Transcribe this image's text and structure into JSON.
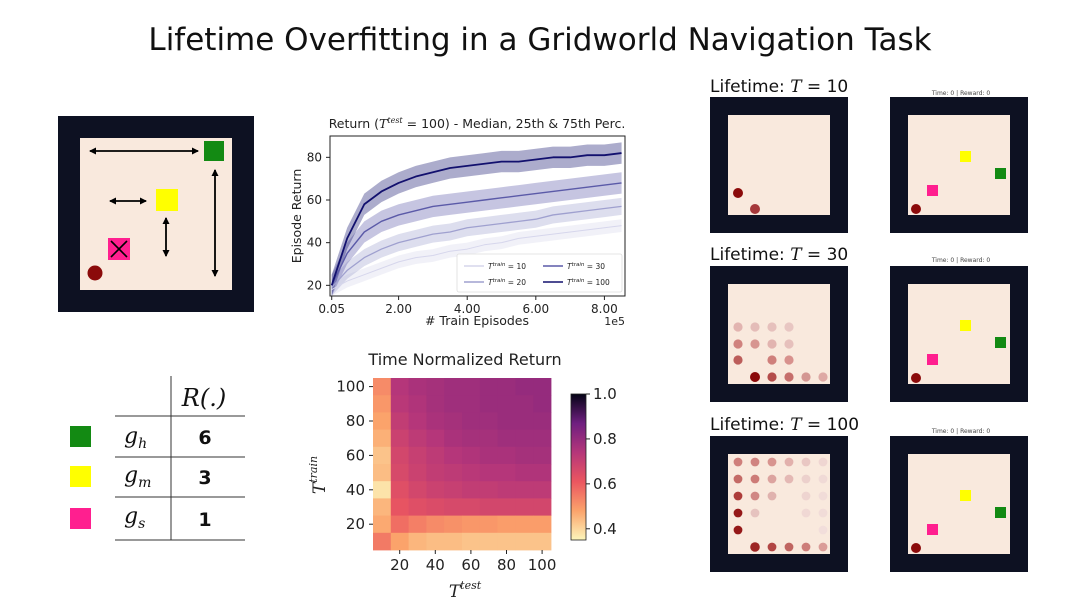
{
  "title": "Lifetime Overfitting in a Gridworld Navigation Task",
  "colors": {
    "background": "#ffffff",
    "frame": "#0d1122",
    "floor": "#f9e9dd",
    "goal_high": "#138a13",
    "goal_medium": "#ffff00",
    "goal_small": "#ff1f8f",
    "agent": "#8b0a0a"
  },
  "reward_table": {
    "header": "R(.)",
    "rows": [
      {
        "goal": "g_h",
        "symbol": "g",
        "subscript": "h",
        "reward": "6",
        "color_key": "goal_high"
      },
      {
        "goal": "g_m",
        "symbol": "g",
        "subscript": "m",
        "reward": "3",
        "color_key": "goal_medium"
      },
      {
        "goal": "g_s",
        "symbol": "g",
        "subscript": "s",
        "reward": "1",
        "color_key": "goal_small"
      }
    ]
  },
  "lifetime_panels": [
    {
      "label_prefix": "Lifetime: ",
      "label_var": "T",
      "label_suffix": " = 10",
      "mini_caption": "Time: 0 | Reward: 0"
    },
    {
      "label_prefix": "Lifetime: ",
      "label_var": "T",
      "label_suffix": " = 30",
      "mini_caption": "Time: 0 | Reward: 0"
    },
    {
      "label_prefix": "Lifetime: ",
      "label_var": "T",
      "label_suffix": " = 100",
      "mini_caption": "Time: 0 | Reward: 0"
    }
  ],
  "chart_data": [
    {
      "type": "line",
      "title": "Return (T^test = 100) - Median, 25th & 75th Perc.",
      "title_parts": {
        "prefix": "Return (",
        "var": "T",
        "sup": "test",
        "suffix": " = 100) - Median, 25th & 75th Perc."
      },
      "xlabel": "# Train Episodes",
      "x_offset_label": "1e5",
      "ylabel": "Episode Return",
      "xlim": [
        0,
        8.6
      ],
      "ylim": [
        15,
        90
      ],
      "xticks": [
        0.05,
        2.0,
        4.0,
        6.0,
        8.0
      ],
      "xtick_labels": [
        "0.05",
        "2.00",
        "4.00",
        "6.00",
        "8.00"
      ],
      "yticks": [
        20,
        40,
        60,
        80
      ],
      "grid": false,
      "legend_placement": "bottom-right",
      "series": [
        {
          "name": "T^train = 10",
          "legend_sup": "train",
          "legend_val": " = 10",
          "color": "#d6d6ec",
          "x": [
            0.05,
            0.5,
            1.0,
            1.5,
            2.0,
            2.5,
            3.0,
            3.5,
            4.0,
            4.5,
            5.0,
            5.5,
            6.0,
            6.5,
            7.0,
            7.5,
            8.0,
            8.5
          ],
          "y": [
            18,
            22,
            25,
            28,
            31,
            33,
            34,
            36,
            37,
            39,
            40,
            42,
            43,
            44,
            45,
            46,
            47,
            48
          ]
        },
        {
          "name": "T^train = 20",
          "legend_sup": "train",
          "legend_val": " = 20",
          "color": "#9fa0cf",
          "x": [
            0.05,
            0.5,
            1.0,
            1.5,
            2.0,
            2.5,
            3.0,
            3.5,
            4.0,
            4.5,
            5.0,
            5.5,
            6.0,
            6.5,
            7.0,
            7.5,
            8.0,
            8.5
          ],
          "y": [
            19,
            27,
            33,
            37,
            40,
            42,
            44,
            45,
            47,
            48,
            49,
            50,
            51,
            53,
            54,
            55,
            56,
            57
          ]
        },
        {
          "name": "T^train = 30",
          "legend_sup": "train",
          "legend_val": " = 30",
          "color": "#5b5aa8",
          "x": [
            0.05,
            0.5,
            1.0,
            1.5,
            2.0,
            2.5,
            3.0,
            3.5,
            4.0,
            4.5,
            5.0,
            5.5,
            6.0,
            6.5,
            7.0,
            7.5,
            8.0,
            8.5
          ],
          "y": [
            20,
            35,
            45,
            50,
            53,
            55,
            57,
            58,
            59,
            60,
            61,
            62,
            63,
            64,
            65,
            66,
            67,
            68
          ]
        },
        {
          "name": "T^train = 100",
          "legend_sup": "train",
          "legend_val": " = 100",
          "color": "#12106e",
          "x": [
            0.05,
            0.5,
            1.0,
            1.5,
            2.0,
            2.5,
            3.0,
            3.5,
            4.0,
            4.5,
            5.0,
            5.5,
            6.0,
            6.5,
            7.0,
            7.5,
            8.0,
            8.5
          ],
          "y": [
            20,
            42,
            58,
            64,
            68,
            71,
            73,
            75,
            76,
            77,
            78,
            78,
            79,
            80,
            80,
            81,
            81,
            82
          ]
        }
      ]
    },
    {
      "type": "heatmap",
      "title": "Time Normalized Return",
      "xlabel_var": "T",
      "xlabel_sup": "test",
      "ylabel_var": "T",
      "ylabel_sup": "train",
      "x_values": [
        10,
        20,
        30,
        40,
        50,
        60,
        70,
        80,
        90,
        100
      ],
      "y_values": [
        10,
        20,
        30,
        40,
        50,
        60,
        70,
        80,
        90,
        100
      ],
      "xticks": [
        20,
        40,
        60,
        80,
        100
      ],
      "yticks": [
        20,
        40,
        60,
        80,
        100
      ],
      "color_range": [
        0.35,
        1.0
      ],
      "colorbar_ticks": [
        "0.4",
        "0.6",
        "0.8",
        "1.0"
      ],
      "colorbar_tick_values": [
        0.4,
        0.6,
        0.8,
        1.0
      ],
      "row_order": "top-to-bottom: T^train 100 down to 10",
      "values": [
        [
          0.52,
          0.74,
          0.76,
          0.77,
          0.78,
          0.78,
          0.79,
          0.79,
          0.8,
          0.8
        ],
        [
          0.5,
          0.73,
          0.75,
          0.77,
          0.78,
          0.78,
          0.79,
          0.79,
          0.79,
          0.8
        ],
        [
          0.48,
          0.71,
          0.74,
          0.76,
          0.77,
          0.78,
          0.78,
          0.79,
          0.79,
          0.79
        ],
        [
          0.46,
          0.69,
          0.72,
          0.74,
          0.76,
          0.77,
          0.77,
          0.78,
          0.78,
          0.78
        ],
        [
          0.43,
          0.67,
          0.7,
          0.72,
          0.74,
          0.75,
          0.76,
          0.76,
          0.77,
          0.77
        ],
        [
          0.44,
          0.66,
          0.69,
          0.71,
          0.72,
          0.73,
          0.74,
          0.74,
          0.75,
          0.75
        ],
        [
          0.38,
          0.64,
          0.67,
          0.69,
          0.7,
          0.71,
          0.71,
          0.72,
          0.72,
          0.72
        ],
        [
          0.45,
          0.62,
          0.64,
          0.65,
          0.66,
          0.66,
          0.67,
          0.67,
          0.67,
          0.67
        ],
        [
          0.47,
          0.57,
          0.54,
          0.52,
          0.51,
          0.5,
          0.5,
          0.49,
          0.49,
          0.49
        ],
        [
          0.55,
          0.48,
          0.45,
          0.44,
          0.44,
          0.43,
          0.43,
          0.43,
          0.43,
          0.43
        ]
      ]
    }
  ]
}
